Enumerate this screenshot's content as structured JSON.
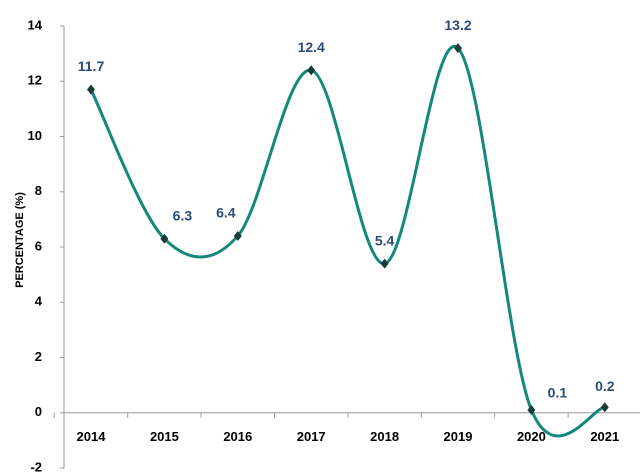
{
  "chart_data": {
    "type": "line",
    "y_label": "PERCENTAGE (%)",
    "categories": [
      "2014",
      "2015",
      "2016",
      "2017",
      "2018",
      "2019",
      "2020",
      "2021"
    ],
    "values": [
      11.7,
      6.3,
      6.4,
      12.4,
      5.4,
      13.2,
      0.1,
      0.2
    ],
    "color": "#15877d",
    "marker_color": "#173d36",
    "ylim": [
      -2,
      14
    ],
    "yticks": [
      -2,
      0,
      2,
      4,
      6,
      8,
      10,
      12,
      14
    ],
    "grid": false,
    "smooth": true
  }
}
